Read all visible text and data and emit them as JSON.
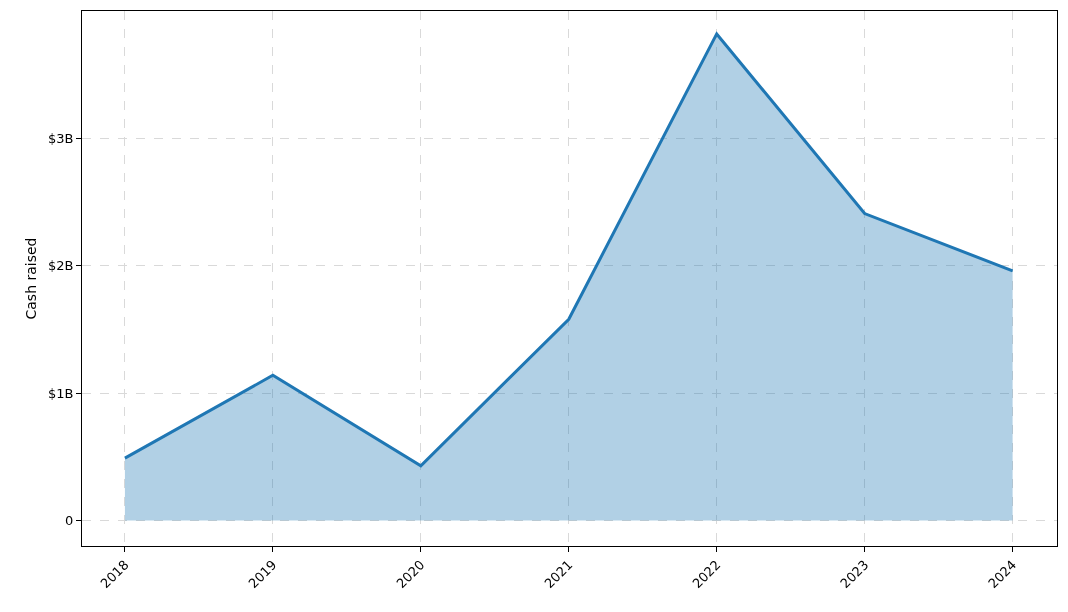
{
  "chart_data": {
    "type": "area",
    "ylabel": "Cash raised",
    "x": [
      2018,
      2019,
      2020,
      2021,
      2022,
      2023,
      2024
    ],
    "series": [
      {
        "color": "#1f77b4",
        "values": [
          0.49,
          1.14,
          0.43,
          1.58,
          3.82,
          2.41,
          1.96
        ]
      }
    ],
    "xlim": [
      2017.71,
      2024.3
    ],
    "xticks": [
      2018,
      2019,
      2020,
      2021,
      2022,
      2023,
      2024
    ],
    "ylim": [
      -0.2,
      4.0
    ],
    "yticks": [
      0,
      {
        "value": 1,
        "label": "$1B"
      },
      {
        "value": 2,
        "label": "$2B"
      },
      {
        "value": 3,
        "label": "$3B"
      }
    ],
    "grid": true,
    "line_style": "solid",
    "marker": "none"
  }
}
